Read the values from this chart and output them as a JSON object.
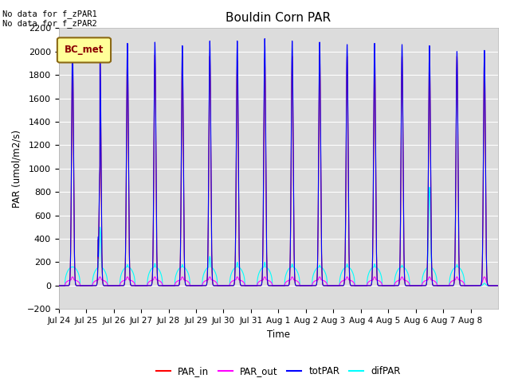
{
  "title": "Bouldin Corn PAR",
  "ylabel": "PAR (umol/m2/s)",
  "xlabel": "Time",
  "ylim": [
    -200,
    2200
  ],
  "note_line1": "No data for f_zPAR1",
  "note_line2": "No data for f_zPAR2",
  "legend_label": "BC_met",
  "x_tick_labels": [
    "Jul 24",
    "Jul 25",
    "Jul 26",
    "Jul 27",
    "Jul 28",
    "Jul 29",
    "Jul 30",
    "Jul 31",
    "Aug 1",
    "Aug 2",
    "Aug 3",
    "Aug 4",
    "Aug 5",
    "Aug 6",
    "Aug 7",
    "Aug 8"
  ],
  "colors": {
    "PAR_in": "#ff0000",
    "PAR_out": "#ff00ff",
    "totPAR": "#0000ff",
    "difPAR": "#00ffff",
    "background": "#dcdcdc",
    "legend_box_fill": "#ffff99",
    "legend_box_edge": "#8b6914"
  },
  "num_days": 16,
  "points_per_day": 288,
  "totPAR_peaks": [
    2060,
    2055,
    2070,
    2080,
    2050,
    2090,
    2090,
    2110,
    2090,
    2080,
    2060,
    2070,
    2060,
    2050,
    2000,
    2010
  ],
  "PAR_in_peaks": [
    1970,
    1950,
    1970,
    1970,
    1960,
    1960,
    1920,
    1940,
    1960,
    1970,
    1960,
    1970,
    1960,
    1960,
    1960,
    1960
  ],
  "PAR_out_peaks": [
    75,
    75,
    75,
    75,
    75,
    75,
    75,
    75,
    75,
    75,
    75,
    75,
    75,
    75,
    75,
    75
  ],
  "difPAR_peaks": [
    160,
    500,
    180,
    190,
    180,
    250,
    200,
    200,
    185,
    175,
    185,
    185,
    175,
    840,
    180,
    20
  ],
  "difPAR_flat": [
    160,
    160,
    160,
    160,
    160,
    160,
    160,
    160,
    160,
    160,
    160,
    160,
    160,
    160,
    160,
    0
  ],
  "PAR_out_flat": [
    50,
    50,
    50,
    50,
    50,
    50,
    50,
    50,
    50,
    50,
    50,
    50,
    50,
    50,
    50,
    0
  ],
  "background_color": "#dcdcdc"
}
